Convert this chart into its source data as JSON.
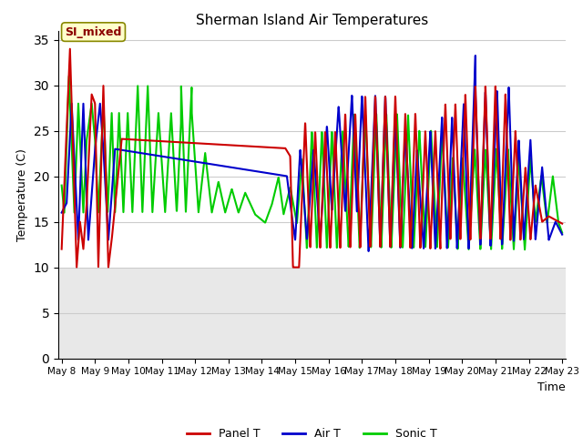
{
  "title": "Sherman Island Air Temperatures",
  "xlabel": "Time",
  "ylabel": "Temperature (C)",
  "ylim": [
    0,
    36
  ],
  "yticks": [
    0,
    5,
    10,
    15,
    20,
    25,
    30,
    35
  ],
  "background_color": "#ffffff",
  "plot_bg_light": "#e8e8e8",
  "plot_bg_white": "#ffffff",
  "legend_label": "SI_mixed",
  "legend_box_color": "#ffffcc",
  "legend_text_color": "#8b0000",
  "series": {
    "panel": {
      "color": "#cc0000",
      "label": "Panel T",
      "linewidth": 1.5
    },
    "air": {
      "color": "#0000cc",
      "label": "Air T",
      "linewidth": 1.5
    },
    "sonic": {
      "color": "#00cc00",
      "label": "Sonic T",
      "linewidth": 1.5
    }
  },
  "x_start": 7.9,
  "x_end": 23.1,
  "xtick_labels": [
    "May 8",
    "May 9",
    "May 10",
    "May 11",
    "May 12",
    "May 13",
    "May 14",
    "May 15",
    "May 16",
    "May 17",
    "May 18",
    "May 19",
    "May 20",
    "May 21",
    "May 22",
    "May 23"
  ],
  "xtick_positions": [
    8,
    9,
    10,
    11,
    12,
    13,
    14,
    15,
    16,
    17,
    18,
    19,
    20,
    21,
    22,
    23
  ]
}
